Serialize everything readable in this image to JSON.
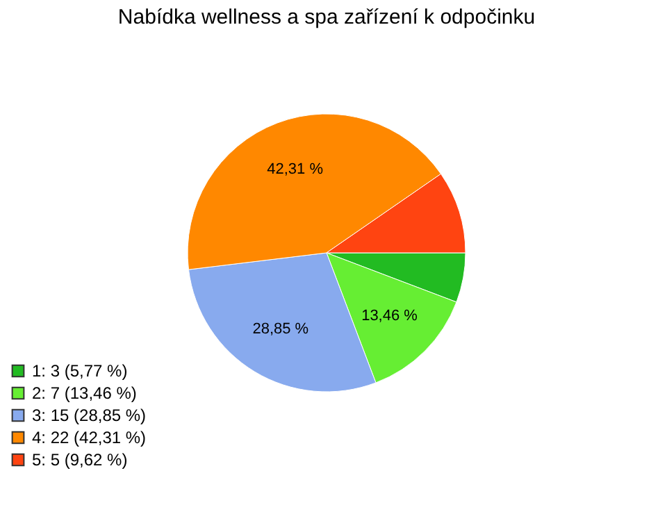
{
  "chart_data": {
    "type": "pie",
    "title": "Nabídka wellness a spa zařízení k odpočinku",
    "categories": [
      "1: 3 (5,77 %)",
      "2: 7 (13,46 %)",
      "3: 15 (28,85 %)",
      "4: 22 (42,31 %)",
      "5: 5 (9,62 %)"
    ],
    "values": [
      5.77,
      13.46,
      28.85,
      42.31,
      9.62
    ],
    "colors": [
      "#22bb22",
      "#66ee33",
      "#88aaee",
      "#ff8800",
      "#ff4411"
    ],
    "value_labels": [
      null,
      "13,46 %",
      "28,85 %",
      "42,31 %",
      null
    ],
    "legend": "bottom left"
  }
}
